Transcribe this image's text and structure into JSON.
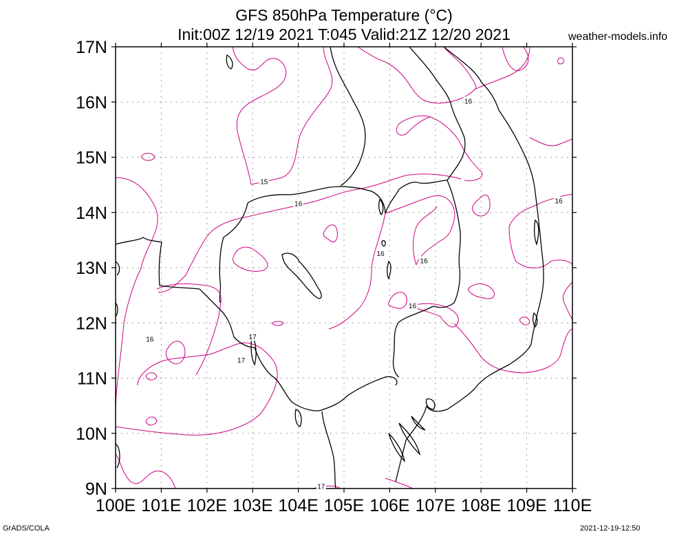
{
  "header": {
    "title_line1": "GFS 850hPa Temperature (°C)",
    "title_line2": "Init:00Z 12/19 2021 T:045 Valid:21Z 12/20 2021",
    "watermark": "weather-models.info"
  },
  "footer": {
    "software": "GrADS/COLA",
    "generated": "2021-12-19-12:50"
  },
  "map": {
    "lon_range": [
      100,
      110
    ],
    "lat_range": [
      9,
      17
    ],
    "grid": true,
    "contour_color": "#cc0080",
    "coast_color": "#000000",
    "lat_ticks": [
      "9N",
      "10N",
      "11N",
      "12N",
      "13N",
      "14N",
      "15N",
      "16N",
      "17N"
    ],
    "lon_ticks": [
      "100E",
      "101E",
      "102E",
      "103E",
      "104E",
      "105E",
      "106E",
      "107E",
      "108E",
      "109E",
      "110E"
    ],
    "contour_labels": [
      {
        "text": "16",
        "lon": 107.72,
        "lat": 16.01
      },
      {
        "text": "15",
        "lon": 103.25,
        "lat": 14.55
      },
      {
        "text": "16",
        "lon": 104.0,
        "lat": 14.15
      },
      {
        "text": "16",
        "lon": 109.7,
        "lat": 14.2
      },
      {
        "text": "16",
        "lon": 105.8,
        "lat": 13.25
      },
      {
        "text": "16",
        "lon": 106.75,
        "lat": 13.12
      },
      {
        "text": "16",
        "lon": 106.5,
        "lat": 12.3
      },
      {
        "text": "16",
        "lon": 100.75,
        "lat": 11.7
      },
      {
        "text": "17",
        "lon": 103.0,
        "lat": 11.74
      },
      {
        "text": "17",
        "lon": 102.75,
        "lat": 11.32
      },
      {
        "text": "17",
        "lon": 104.5,
        "lat": 9.03
      }
    ]
  }
}
